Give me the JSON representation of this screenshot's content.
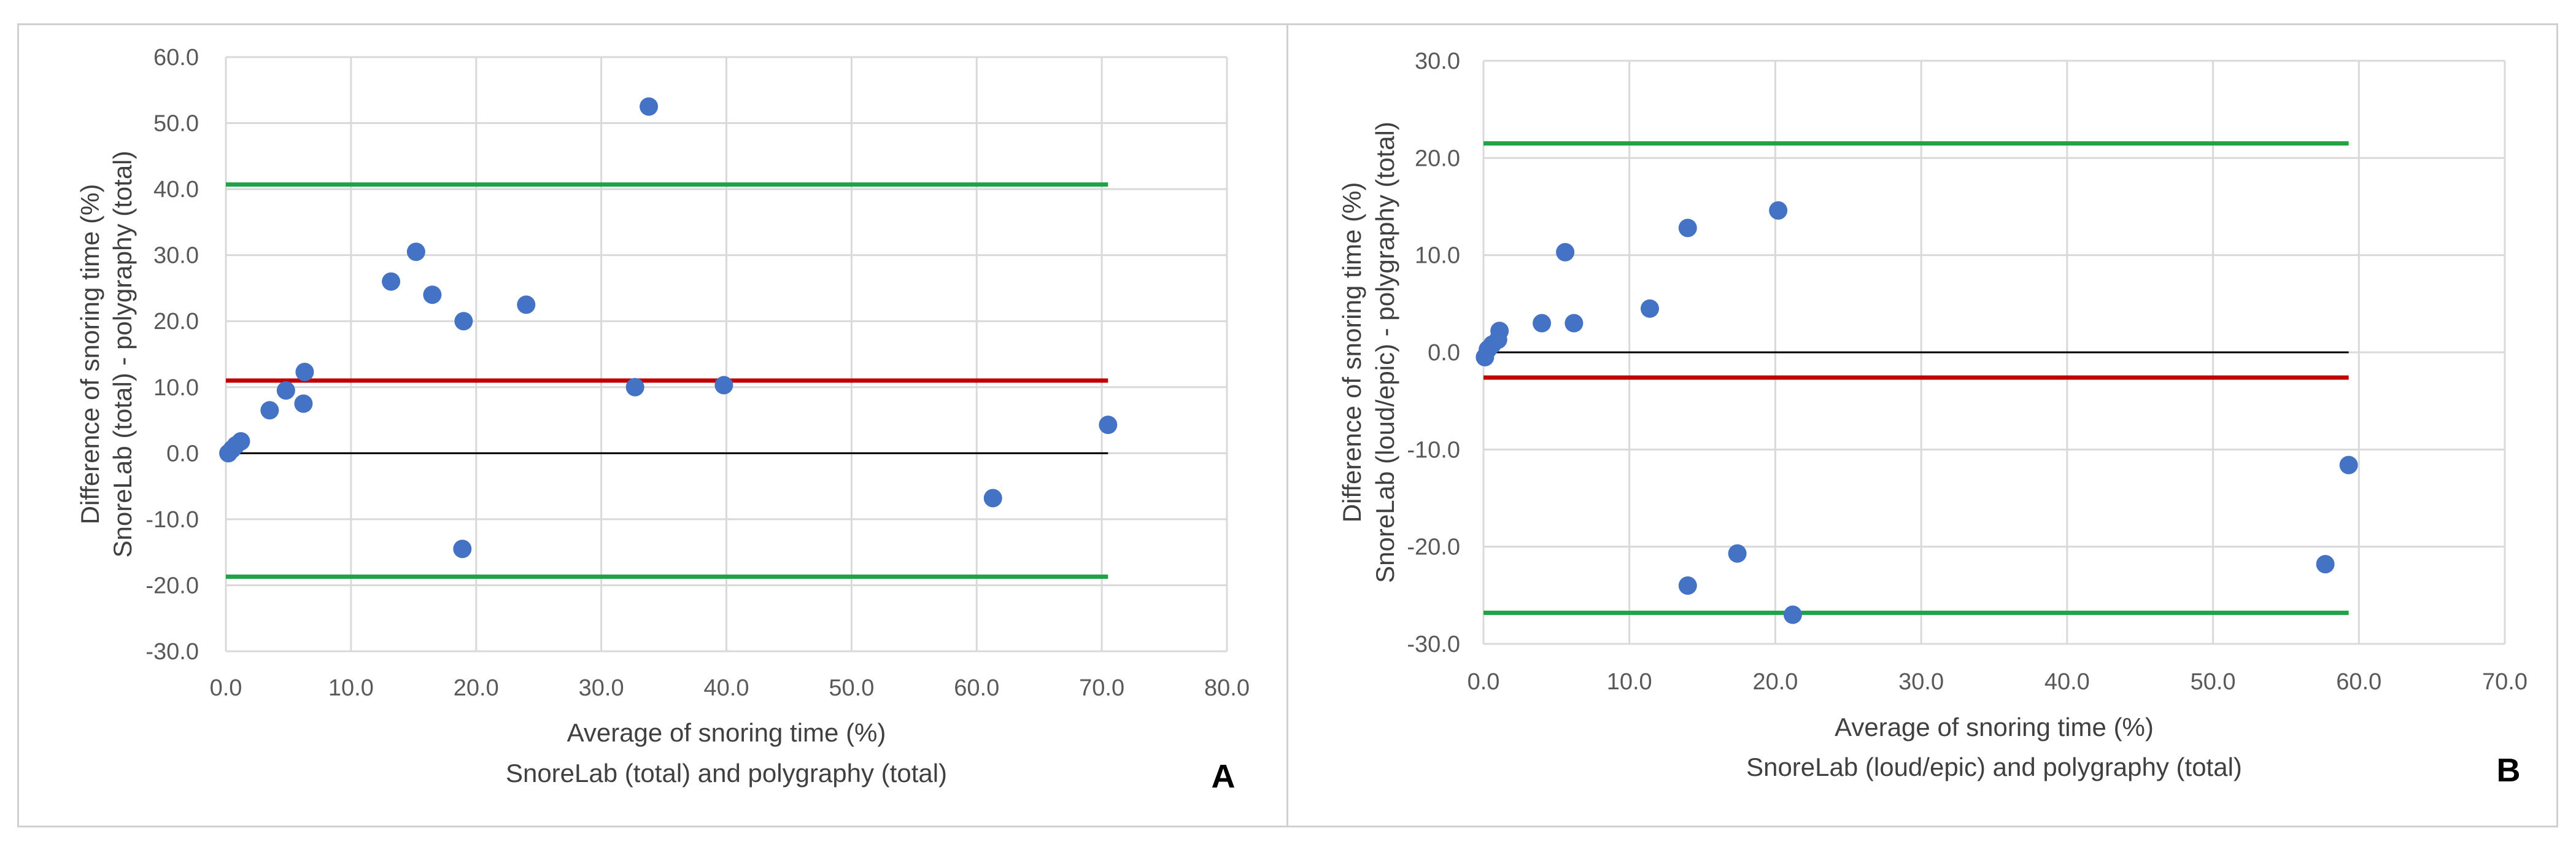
{
  "chart_data": [
    {
      "type": "scatter",
      "panel_label": "A",
      "xlabel_lines": [
        "Average of snoring time (%)",
        "SnoreLab (total) and polygraphy (total)"
      ],
      "ylabel_lines": [
        "Difference of snoring time (%)",
        "SnoreLab (total) - polygraphy (total)"
      ],
      "xlim": [
        0,
        80
      ],
      "ylim": [
        -30,
        60
      ],
      "x_ticks": [
        "0.0",
        "10.0",
        "20.0",
        "30.0",
        "40.0",
        "50.0",
        "60.0",
        "70.0",
        "80.0"
      ],
      "y_ticks": [
        "-30.0",
        "-20.0",
        "-10.0",
        "0.0",
        "10.0",
        "20.0",
        "30.0",
        "40.0",
        "50.0",
        "60.0"
      ],
      "grid": true,
      "points": [
        {
          "x": 0.2,
          "y": 0.0
        },
        {
          "x": 0.5,
          "y": 0.6
        },
        {
          "x": 0.8,
          "y": 1.2
        },
        {
          "x": 1.2,
          "y": 1.8
        },
        {
          "x": 3.5,
          "y": 6.5
        },
        {
          "x": 4.8,
          "y": 9.5
        },
        {
          "x": 6.2,
          "y": 7.5
        },
        {
          "x": 6.3,
          "y": 12.3
        },
        {
          "x": 13.2,
          "y": 26.0
        },
        {
          "x": 15.2,
          "y": 30.5
        },
        {
          "x": 16.5,
          "y": 24.0
        },
        {
          "x": 19.0,
          "y": 20.0
        },
        {
          "x": 18.9,
          "y": -14.5
        },
        {
          "x": 24.0,
          "y": 22.5
        },
        {
          "x": 32.7,
          "y": 10.0
        },
        {
          "x": 33.8,
          "y": 52.5
        },
        {
          "x": 39.8,
          "y": 10.3
        },
        {
          "x": 61.3,
          "y": -6.8
        },
        {
          "x": 70.5,
          "y": 4.3
        }
      ],
      "lines": [
        {
          "name": "mean",
          "y": 11.0,
          "x_range": [
            0,
            70.5
          ],
          "color": "#c00000"
        },
        {
          "name": "upper-limit",
          "y": 40.7,
          "x_range": [
            0,
            70.5
          ],
          "color": "#21a345"
        },
        {
          "name": "lower-limit",
          "y": -18.7,
          "x_range": [
            0,
            70.5
          ],
          "color": "#21a345"
        },
        {
          "name": "zero",
          "y": 0.0,
          "x_range": [
            0,
            70.5
          ],
          "color": "#000000"
        }
      ],
      "marker_color": "#4472c4"
    },
    {
      "type": "scatter",
      "panel_label": "B",
      "xlabel_lines": [
        "Average of snoring time (%)",
        "SnoreLab (loud/epic) and polygraphy (total)"
      ],
      "ylabel_lines": [
        "Difference of snoring time (%)",
        "SnoreLab (loud/epic) - polygraphy (total)"
      ],
      "xlim": [
        0,
        70
      ],
      "ylim": [
        -30,
        30
      ],
      "x_ticks": [
        "0.0",
        "10.0",
        "20.0",
        "30.0",
        "40.0",
        "50.0",
        "60.0",
        "70.0"
      ],
      "y_ticks": [
        "-30.0",
        "-20.0",
        "-10.0",
        "0.0",
        "10.0",
        "20.0",
        "30.0"
      ],
      "grid": true,
      "points": [
        {
          "x": 0.1,
          "y": -0.5
        },
        {
          "x": 0.3,
          "y": 0.3
        },
        {
          "x": 0.6,
          "y": 0.8
        },
        {
          "x": 1.0,
          "y": 1.3
        },
        {
          "x": 1.1,
          "y": 2.2
        },
        {
          "x": 4.0,
          "y": 3.0
        },
        {
          "x": 6.2,
          "y": 3.0
        },
        {
          "x": 5.6,
          "y": 10.3
        },
        {
          "x": 11.4,
          "y": 4.5
        },
        {
          "x": 14.0,
          "y": 12.8
        },
        {
          "x": 20.2,
          "y": 14.6
        },
        {
          "x": 14.0,
          "y": -24.0
        },
        {
          "x": 17.4,
          "y": -20.7
        },
        {
          "x": 21.2,
          "y": -27.0
        },
        {
          "x": 57.7,
          "y": -21.8
        },
        {
          "x": 59.3,
          "y": -11.6
        }
      ],
      "lines": [
        {
          "name": "mean",
          "y": -2.6,
          "x_range": [
            0,
            59.3
          ],
          "color": "#c00000"
        },
        {
          "name": "upper-limit",
          "y": 21.5,
          "x_range": [
            0,
            59.3
          ],
          "color": "#21a345"
        },
        {
          "name": "lower-limit",
          "y": -26.8,
          "x_range": [
            0,
            59.3
          ],
          "color": "#21a345"
        },
        {
          "name": "zero",
          "y": 0.0,
          "x_range": [
            0,
            59.3
          ],
          "color": "#000000"
        }
      ],
      "marker_color": "#4472c4"
    }
  ]
}
